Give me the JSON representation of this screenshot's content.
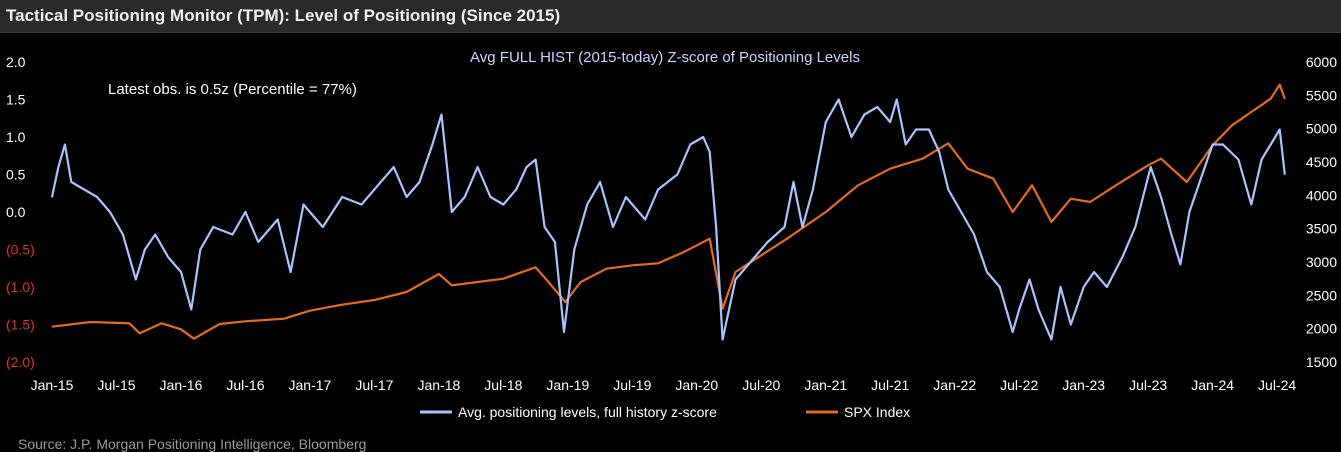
{
  "header": {
    "title": "Tactical Positioning Monitor (TPM): Level of Positioning (Since 2015)"
  },
  "footer": {
    "source_text": "Source: J.P. Morgan Positioning Intelligence, Bloomberg"
  },
  "colors": {
    "background": "#000000",
    "header_bg": "#2a2a2a",
    "positioning_line": "#a8c4ff",
    "spx_line": "#e46b1c",
    "negative_tick": "#e03030",
    "title_text": "#c6d6ff"
  },
  "chart_data": {
    "type": "line",
    "title": "Avg FULL HIST (2015-today) Z-score of Positioning  Levels",
    "annotation": "Latest obs. is 0.5z (Percentile = 77%)",
    "left_axis": {
      "ylim": [
        -2.0,
        2.0
      ],
      "ticks": [
        {
          "value": 2.0,
          "label": "2.0"
        },
        {
          "value": 1.5,
          "label": "1.5"
        },
        {
          "value": 1.0,
          "label": "1.0"
        },
        {
          "value": 0.5,
          "label": "0.5"
        },
        {
          "value": 0.0,
          "label": "0.0"
        },
        {
          "value": -0.5,
          "label": "(0.5)"
        },
        {
          "value": -1.0,
          "label": "(1.0)"
        },
        {
          "value": -1.5,
          "label": "(1.5)"
        },
        {
          "value": -2.0,
          "label": "(2.0)"
        }
      ]
    },
    "right_axis": {
      "ylim": [
        1500,
        6000
      ],
      "ticks": [
        {
          "value": 6000,
          "label": "6000"
        },
        {
          "value": 5500,
          "label": "5500"
        },
        {
          "value": 5000,
          "label": "5000"
        },
        {
          "value": 4500,
          "label": "4500"
        },
        {
          "value": 4000,
          "label": "4000"
        },
        {
          "value": 3500,
          "label": "3500"
        },
        {
          "value": 3000,
          "label": "3000"
        },
        {
          "value": 2500,
          "label": "2500"
        },
        {
          "value": 2000,
          "label": "2000"
        },
        {
          "value": 1500,
          "label": "1500"
        }
      ]
    },
    "x_axis": {
      "xlim": [
        2015.0,
        2024.6
      ],
      "ticks": [
        {
          "value": 2015.0,
          "label": "Jan-15"
        },
        {
          "value": 2015.5,
          "label": "Jul-15"
        },
        {
          "value": 2016.0,
          "label": "Jan-16"
        },
        {
          "value": 2016.5,
          "label": "Jul-16"
        },
        {
          "value": 2017.0,
          "label": "Jan-17"
        },
        {
          "value": 2017.5,
          "label": "Jul-17"
        },
        {
          "value": 2018.0,
          "label": "Jan-18"
        },
        {
          "value": 2018.5,
          "label": "Jul-18"
        },
        {
          "value": 2019.0,
          "label": "Jan-19"
        },
        {
          "value": 2019.5,
          "label": "Jul-19"
        },
        {
          "value": 2020.0,
          "label": "Jan-20"
        },
        {
          "value": 2020.5,
          "label": "Jul-20"
        },
        {
          "value": 2021.0,
          "label": "Jan-21"
        },
        {
          "value": 2021.5,
          "label": "Jul-21"
        },
        {
          "value": 2022.0,
          "label": "Jan-22"
        },
        {
          "value": 2022.5,
          "label": "Jul-22"
        },
        {
          "value": 2023.0,
          "label": "Jan-23"
        },
        {
          "value": 2023.5,
          "label": "Jul-23"
        },
        {
          "value": 2024.0,
          "label": "Jan-24"
        },
        {
          "value": 2024.5,
          "label": "Jul-24"
        }
      ]
    },
    "grid": false,
    "legend_position": "bottom-center",
    "series": [
      {
        "name": "Avg. positioning levels, full history z-score",
        "axis": "left",
        "color": "#a8c4ff",
        "points": [
          [
            2015.0,
            0.2
          ],
          [
            2015.05,
            0.6
          ],
          [
            2015.1,
            0.9
          ],
          [
            2015.15,
            0.4
          ],
          [
            2015.25,
            0.3
          ],
          [
            2015.35,
            0.2
          ],
          [
            2015.45,
            0.0
          ],
          [
            2015.55,
            -0.3
          ],
          [
            2015.65,
            -0.9
          ],
          [
            2015.72,
            -0.5
          ],
          [
            2015.8,
            -0.3
          ],
          [
            2015.9,
            -0.6
          ],
          [
            2016.0,
            -0.8
          ],
          [
            2016.08,
            -1.3
          ],
          [
            2016.15,
            -0.5
          ],
          [
            2016.25,
            -0.2
          ],
          [
            2016.4,
            -0.3
          ],
          [
            2016.5,
            0.0
          ],
          [
            2016.6,
            -0.4
          ],
          [
            2016.75,
            -0.1
          ],
          [
            2016.85,
            -0.8
          ],
          [
            2016.95,
            0.1
          ],
          [
            2017.1,
            -0.2
          ],
          [
            2017.25,
            0.2
          ],
          [
            2017.4,
            0.1
          ],
          [
            2017.55,
            0.4
          ],
          [
            2017.65,
            0.6
          ],
          [
            2017.75,
            0.2
          ],
          [
            2017.85,
            0.4
          ],
          [
            2017.95,
            0.9
          ],
          [
            2018.02,
            1.3
          ],
          [
            2018.1,
            0.0
          ],
          [
            2018.2,
            0.2
          ],
          [
            2018.3,
            0.6
          ],
          [
            2018.4,
            0.2
          ],
          [
            2018.5,
            0.1
          ],
          [
            2018.6,
            0.3
          ],
          [
            2018.68,
            0.6
          ],
          [
            2018.75,
            0.7
          ],
          [
            2018.82,
            -0.2
          ],
          [
            2018.9,
            -0.4
          ],
          [
            2018.97,
            -1.6
          ],
          [
            2019.05,
            -0.5
          ],
          [
            2019.15,
            0.1
          ],
          [
            2019.25,
            0.4
          ],
          [
            2019.35,
            -0.2
          ],
          [
            2019.45,
            0.2
          ],
          [
            2019.6,
            -0.1
          ],
          [
            2019.7,
            0.3
          ],
          [
            2019.85,
            0.5
          ],
          [
            2019.95,
            0.9
          ],
          [
            2020.05,
            1.0
          ],
          [
            2020.1,
            0.8
          ],
          [
            2020.15,
            -0.2
          ],
          [
            2020.2,
            -1.7
          ],
          [
            2020.3,
            -0.9
          ],
          [
            2020.45,
            -0.6
          ],
          [
            2020.55,
            -0.4
          ],
          [
            2020.68,
            -0.2
          ],
          [
            2020.75,
            0.4
          ],
          [
            2020.82,
            -0.2
          ],
          [
            2020.9,
            0.3
          ],
          [
            2021.0,
            1.2
          ],
          [
            2021.1,
            1.5
          ],
          [
            2021.2,
            1.0
          ],
          [
            2021.3,
            1.3
          ],
          [
            2021.4,
            1.4
          ],
          [
            2021.5,
            1.2
          ],
          [
            2021.55,
            1.5
          ],
          [
            2021.62,
            0.9
          ],
          [
            2021.7,
            1.1
          ],
          [
            2021.8,
            1.1
          ],
          [
            2021.88,
            0.8
          ],
          [
            2021.95,
            0.3
          ],
          [
            2022.05,
            0.0
          ],
          [
            2022.15,
            -0.3
          ],
          [
            2022.25,
            -0.8
          ],
          [
            2022.35,
            -1.0
          ],
          [
            2022.45,
            -1.6
          ],
          [
            2022.5,
            -1.3
          ],
          [
            2022.58,
            -0.9
          ],
          [
            2022.65,
            -1.3
          ],
          [
            2022.75,
            -1.7
          ],
          [
            2022.82,
            -1.0
          ],
          [
            2022.9,
            -1.5
          ],
          [
            2023.0,
            -1.0
          ],
          [
            2023.08,
            -0.8
          ],
          [
            2023.18,
            -1.0
          ],
          [
            2023.3,
            -0.6
          ],
          [
            2023.4,
            -0.2
          ],
          [
            2023.52,
            0.6
          ],
          [
            2023.6,
            0.2
          ],
          [
            2023.68,
            -0.3
          ],
          [
            2023.75,
            -0.7
          ],
          [
            2023.82,
            0.0
          ],
          [
            2023.9,
            0.4
          ],
          [
            2024.0,
            0.9
          ],
          [
            2024.08,
            0.9
          ],
          [
            2024.2,
            0.7
          ],
          [
            2024.3,
            0.1
          ],
          [
            2024.38,
            0.7
          ],
          [
            2024.45,
            0.9
          ],
          [
            2024.52,
            1.1
          ],
          [
            2024.56,
            0.5
          ]
        ]
      },
      {
        "name": "SPX Index",
        "axis": "right",
        "color": "#e46b1c",
        "points": [
          [
            2015.0,
            2030
          ],
          [
            2015.3,
            2100
          ],
          [
            2015.6,
            2080
          ],
          [
            2015.68,
            1930
          ],
          [
            2015.85,
            2080
          ],
          [
            2016.0,
            1990
          ],
          [
            2016.1,
            1850
          ],
          [
            2016.3,
            2070
          ],
          [
            2016.5,
            2110
          ],
          [
            2016.8,
            2150
          ],
          [
            2017.0,
            2270
          ],
          [
            2017.25,
            2360
          ],
          [
            2017.5,
            2430
          ],
          [
            2017.75,
            2550
          ],
          [
            2018.0,
            2820
          ],
          [
            2018.1,
            2650
          ],
          [
            2018.3,
            2700
          ],
          [
            2018.5,
            2750
          ],
          [
            2018.75,
            2920
          ],
          [
            2018.85,
            2700
          ],
          [
            2018.98,
            2400
          ],
          [
            2019.1,
            2700
          ],
          [
            2019.3,
            2900
          ],
          [
            2019.5,
            2950
          ],
          [
            2019.7,
            2980
          ],
          [
            2019.9,
            3150
          ],
          [
            2020.1,
            3350
          ],
          [
            2020.2,
            2300
          ],
          [
            2020.3,
            2850
          ],
          [
            2020.5,
            3100
          ],
          [
            2020.7,
            3350
          ],
          [
            2020.85,
            3550
          ],
          [
            2021.0,
            3750
          ],
          [
            2021.25,
            4150
          ],
          [
            2021.5,
            4400
          ],
          [
            2021.75,
            4550
          ],
          [
            2021.95,
            4780
          ],
          [
            2022.1,
            4400
          ],
          [
            2022.3,
            4250
          ],
          [
            2022.45,
            3750
          ],
          [
            2022.6,
            4150
          ],
          [
            2022.75,
            3600
          ],
          [
            2022.9,
            3950
          ],
          [
            2023.05,
            3900
          ],
          [
            2023.25,
            4150
          ],
          [
            2023.5,
            4450
          ],
          [
            2023.6,
            4550
          ],
          [
            2023.8,
            4200
          ],
          [
            2024.0,
            4750
          ],
          [
            2024.15,
            5050
          ],
          [
            2024.3,
            5250
          ],
          [
            2024.45,
            5450
          ],
          [
            2024.52,
            5660
          ],
          [
            2024.56,
            5450
          ]
        ]
      }
    ]
  }
}
